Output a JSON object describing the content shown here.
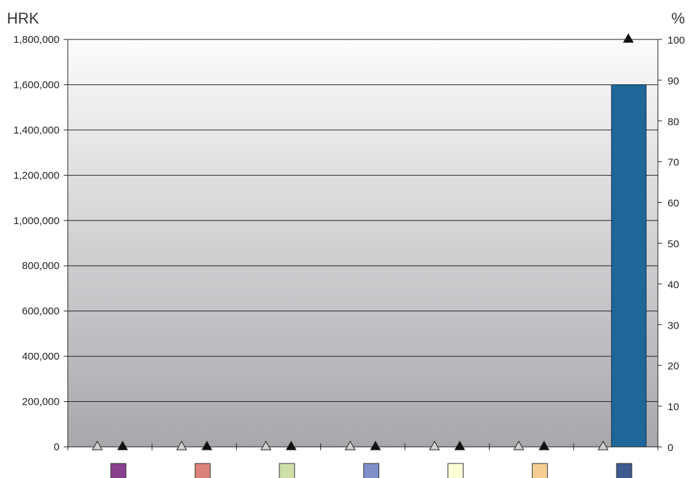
{
  "chart_data": {
    "type": "bar",
    "y_left": {
      "unit": "HRK",
      "range": [
        0,
        1800000
      ],
      "ticks": [
        0,
        200000,
        400000,
        600000,
        800000,
        1000000,
        1200000,
        1400000,
        1600000,
        1800000
      ],
      "tick_labels": [
        "0",
        "200,000",
        "400,000",
        "600,000",
        "800,000",
        "1,000,000",
        "1,200,000",
        "1,400,000",
        "1,600,000",
        "1,800,000"
      ]
    },
    "y_right": {
      "unit": "%",
      "range": [
        0,
        100
      ],
      "ticks": [
        0,
        10,
        20,
        30,
        40,
        50,
        60,
        70,
        80,
        90,
        100
      ],
      "tick_labels": [
        "0",
        "10",
        "20",
        "30",
        "40",
        "50",
        "60",
        "70",
        "80",
        "90",
        "100"
      ]
    },
    "grid": true,
    "group_count": 7,
    "bars": {
      "values": [
        0,
        0,
        0,
        0,
        0,
        0,
        1600000
      ],
      "color": "#1f6699"
    },
    "markers_open": {
      "shape": "triangle",
      "fill": "#d0d0d0",
      "axis": "right",
      "values": [
        0,
        0,
        0,
        0,
        0,
        0,
        0
      ]
    },
    "markers_filled": {
      "shape": "triangle",
      "fill": "#111111",
      "axis": "right",
      "values": [
        0,
        0,
        0,
        0,
        0,
        0,
        100
      ]
    },
    "legend_swatches": [
      "#8b3f8f",
      "#da837a",
      "#cfdfaa",
      "#7f8fc8",
      "#ffffd6",
      "#f5cc92",
      "#3e5a8e"
    ],
    "background_gradient": [
      "#fbfbfb",
      "#a7a8ac"
    ]
  }
}
